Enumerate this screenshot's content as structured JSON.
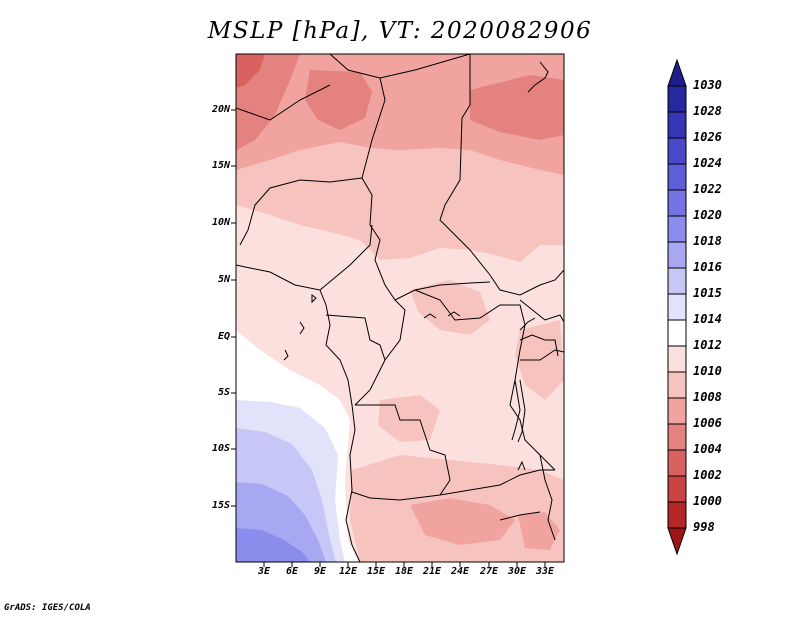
{
  "title": "MSLP [hPa], VT: 2020082906",
  "footer": "GrADS: IGES/COLA",
  "y_labels": [
    "20N",
    "15N",
    "10N",
    "5N",
    "EQ",
    "5S",
    "10S",
    "15S"
  ],
  "x_labels": [
    "3E",
    "6E",
    "9E",
    "12E",
    "15E",
    "18E",
    "21E",
    "24E",
    "27E",
    "30E",
    "33E"
  ],
  "colorbar": {
    "levels": [
      "1030",
      "1028",
      "1026",
      "1024",
      "1022",
      "1020",
      "1018",
      "1016",
      "1015",
      "1014",
      "1012",
      "1010",
      "1008",
      "1006",
      "1004",
      "1002",
      "1000",
      "998"
    ],
    "colors": [
      "#1f1f8c",
      "#27279e",
      "#3636b4",
      "#4949c8",
      "#5e5ed8",
      "#7474e4",
      "#8c8cec",
      "#a8a8f2",
      "#c6c6f7",
      "#e2e2fb",
      "#ffffff",
      "#fbe0de",
      "#f7c3bf",
      "#f0a39f",
      "#e4827f",
      "#d86260",
      "#c94342",
      "#b52726",
      "#9e1617"
    ]
  }
}
